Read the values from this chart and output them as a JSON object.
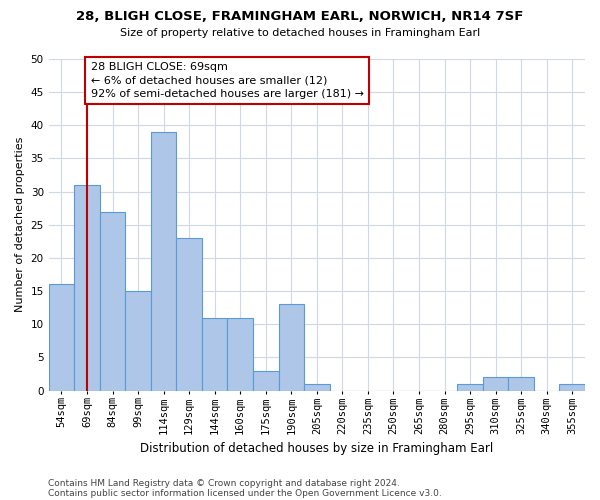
{
  "title1": "28, BLIGH CLOSE, FRAMINGHAM EARL, NORWICH, NR14 7SF",
  "title2": "Size of property relative to detached houses in Framingham Earl",
  "xlabel": "Distribution of detached houses by size in Framingham Earl",
  "ylabel": "Number of detached properties",
  "footer1": "Contains HM Land Registry data © Crown copyright and database right 2024.",
  "footer2": "Contains public sector information licensed under the Open Government Licence v3.0.",
  "categories": [
    "54sqm",
    "69sqm",
    "84sqm",
    "99sqm",
    "114sqm",
    "129sqm",
    "144sqm",
    "160sqm",
    "175sqm",
    "190sqm",
    "205sqm",
    "220sqm",
    "235sqm",
    "250sqm",
    "265sqm",
    "280sqm",
    "295sqm",
    "310sqm",
    "325sqm",
    "340sqm",
    "355sqm"
  ],
  "values": [
    16,
    31,
    27,
    15,
    39,
    23,
    11,
    11,
    3,
    13,
    1,
    0,
    0,
    0,
    0,
    0,
    1,
    2,
    2,
    0,
    1
  ],
  "bar_color": "#aec6e8",
  "bar_edge_color": "#5b9bd5",
  "highlight_index": 1,
  "highlight_color": "#c00000",
  "annotation_line1": "28 BLIGH CLOSE: 69sqm",
  "annotation_line2": "← 6% of detached houses are smaller (12)",
  "annotation_line3": "92% of semi-detached houses are larger (181) →",
  "annotation_box_color": "#ffffff",
  "annotation_box_edge_color": "#c00000",
  "ylim": [
    0,
    50
  ],
  "yticks": [
    0,
    5,
    10,
    15,
    20,
    25,
    30,
    35,
    40,
    45,
    50
  ],
  "background_color": "#ffffff",
  "grid_color": "#d0d8e8",
  "title1_fontsize": 9.5,
  "title2_fontsize": 8.0,
  "ylabel_fontsize": 8.0,
  "xlabel_fontsize": 8.5,
  "tick_fontsize": 7.5,
  "footer_fontsize": 6.5,
  "annotation_fontsize": 8.0
}
